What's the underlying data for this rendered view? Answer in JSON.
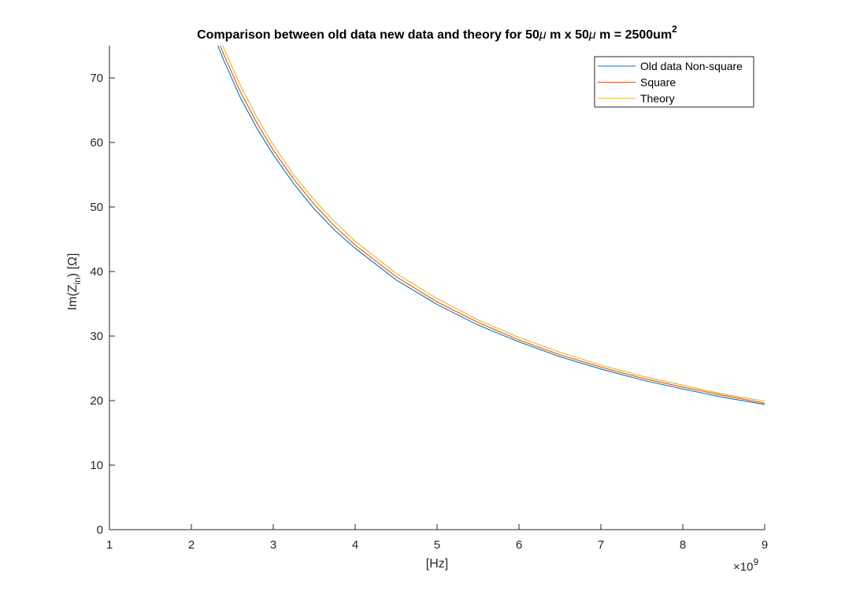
{
  "chart_data": {
    "type": "line",
    "title": {
      "main": "Comparison between old data new data and theory for 50",
      "mu1": "μ",
      "mid": " m x 50",
      "mu2": "μ",
      "end": " m = 2500um",
      "sup": "2"
    },
    "xlabel": "[Hz]",
    "ylabel": {
      "prefix": "Im(Z",
      "sub": "in",
      "suffix": ") [Ω]"
    },
    "x_exponent": {
      "base": "×10",
      "power": "9"
    },
    "xlim": [
      1,
      9
    ],
    "ylim": [
      0,
      75
    ],
    "x_ticks": [
      1,
      2,
      3,
      4,
      5,
      6,
      7,
      8,
      9
    ],
    "y_ticks": [
      0,
      10,
      20,
      30,
      40,
      50,
      60,
      70
    ],
    "x_tick_labels": [
      "1",
      "2",
      "3",
      "4",
      "5",
      "6",
      "7",
      "8",
      "9"
    ],
    "y_tick_labels": [
      "0",
      "10",
      "20",
      "30",
      "40",
      "50",
      "60",
      "70"
    ],
    "x_unit_scale": 1000000000,
    "legend_position": "top-right",
    "grid": false,
    "series": [
      {
        "name": "Old data Non-square",
        "color": "#0072BD",
        "x": [
          2.3,
          2.4,
          2.6,
          2.8,
          3.0,
          3.25,
          3.5,
          3.75,
          4.0,
          4.5,
          5.0,
          5.5,
          6.0,
          6.5,
          7.0,
          7.5,
          8.0,
          8.5,
          9.0
        ],
        "y": [
          75.7,
          72.6,
          66.9,
          62.2,
          58.1,
          53.6,
          49.7,
          46.4,
          43.6,
          38.7,
          34.9,
          31.7,
          29.1,
          26.8,
          24.9,
          23.2,
          21.8,
          20.5,
          19.4
        ]
      },
      {
        "name": "Square",
        "color": "#D95319",
        "x": [
          2.3,
          2.4,
          2.6,
          2.8,
          3.0,
          3.25,
          3.5,
          3.75,
          4.0,
          4.5,
          5.0,
          5.5,
          6.0,
          6.5,
          7.0,
          7.5,
          8.0,
          8.5,
          9.0
        ],
        "y": [
          76.7,
          73.5,
          67.8,
          63.0,
          58.8,
          54.3,
          50.4,
          47.0,
          44.1,
          39.2,
          35.3,
          32.1,
          29.4,
          27.1,
          25.2,
          23.5,
          22.1,
          20.8,
          19.6
        ]
      },
      {
        "name": "Theory",
        "color": "#EDB120",
        "x": [
          2.3,
          2.4,
          2.6,
          2.8,
          3.0,
          3.25,
          3.5,
          3.75,
          4.0,
          4.5,
          5.0,
          5.5,
          6.0,
          6.5,
          7.0,
          7.5,
          8.0,
          8.5,
          9.0
        ],
        "y": [
          77.8,
          74.5,
          68.8,
          63.9,
          59.6,
          55.0,
          51.1,
          47.7,
          44.7,
          39.7,
          35.8,
          32.5,
          29.8,
          27.5,
          25.5,
          23.8,
          22.4,
          21.0,
          19.9
        ]
      }
    ]
  }
}
